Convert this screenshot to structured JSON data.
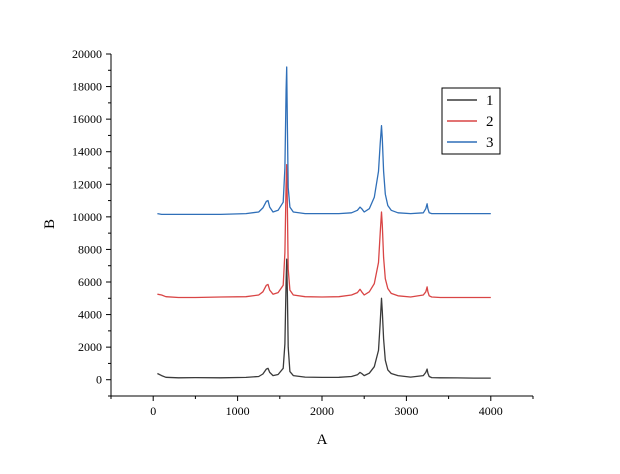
{
  "chart_data": {
    "type": "line",
    "xlabel": "A",
    "ylabel": "B",
    "xlim": [
      -500,
      4500
    ],
    "ylim": [
      -1000,
      20000
    ],
    "xticks": [
      0,
      1000,
      2000,
      3000,
      4000
    ],
    "yticks": [
      0,
      2000,
      4000,
      6000,
      8000,
      10000,
      12000,
      14000,
      16000,
      18000,
      20000
    ],
    "grid": false,
    "legend_position": "top-right",
    "series": [
      {
        "name": "1",
        "color": "#3a3a3a",
        "x": [
          50,
          100,
          150,
          300,
          500,
          800,
          1100,
          1250,
          1300,
          1340,
          1360,
          1380,
          1420,
          1480,
          1540,
          1560,
          1575,
          1582,
          1590,
          1600,
          1620,
          1660,
          1800,
          2000,
          2200,
          2350,
          2420,
          2450,
          2470,
          2500,
          2560,
          2620,
          2670,
          2690,
          2705,
          2715,
          2730,
          2750,
          2780,
          2820,
          2900,
          3050,
          3200,
          3230,
          3245,
          3255,
          3270,
          3300,
          3400,
          3600,
          3800,
          4000
        ],
        "y": [
          380,
          250,
          150,
          120,
          130,
          120,
          140,
          200,
          350,
          650,
          700,
          450,
          250,
          320,
          700,
          2200,
          6000,
          7400,
          5200,
          2000,
          500,
          250,
          160,
          140,
          150,
          200,
          300,
          450,
          380,
          250,
          400,
          800,
          1800,
          3500,
          5000,
          4200,
          2500,
          1200,
          600,
          380,
          250,
          160,
          250,
          450,
          650,
          400,
          200,
          130,
          120,
          110,
          100,
          100
        ]
      },
      {
        "name": "2",
        "color": "#d94545",
        "x": [
          50,
          100,
          150,
          300,
          500,
          800,
          1100,
          1250,
          1300,
          1340,
          1360,
          1380,
          1420,
          1480,
          1540,
          1560,
          1575,
          1582,
          1590,
          1600,
          1620,
          1660,
          1800,
          2000,
          2200,
          2350,
          2420,
          2450,
          2470,
          2500,
          2560,
          2620,
          2670,
          2690,
          2705,
          2715,
          2730,
          2750,
          2780,
          2820,
          2900,
          3050,
          3200,
          3230,
          3245,
          3255,
          3270,
          3300,
          3400,
          3600,
          3800,
          4000
        ],
        "y": [
          5250,
          5200,
          5100,
          5050,
          5050,
          5080,
          5100,
          5200,
          5400,
          5800,
          5850,
          5500,
          5250,
          5350,
          5800,
          7800,
          12000,
          13200,
          10500,
          6800,
          5500,
          5200,
          5100,
          5080,
          5100,
          5200,
          5350,
          5550,
          5400,
          5200,
          5400,
          5900,
          7200,
          9000,
          10300,
          9500,
          7500,
          6200,
          5600,
          5300,
          5150,
          5080,
          5200,
          5400,
          5700,
          5400,
          5150,
          5080,
          5050,
          5050,
          5050,
          5050
        ]
      },
      {
        "name": "3",
        "color": "#2f6fb8",
        "x": [
          50,
          100,
          150,
          300,
          500,
          800,
          1100,
          1250,
          1300,
          1340,
          1360,
          1380,
          1420,
          1480,
          1540,
          1560,
          1575,
          1582,
          1590,
          1600,
          1620,
          1660,
          1800,
          2000,
          2200,
          2350,
          2420,
          2450,
          2470,
          2500,
          2560,
          2620,
          2670,
          2690,
          2705,
          2715,
          2730,
          2750,
          2780,
          2820,
          2900,
          3050,
          3200,
          3230,
          3245,
          3255,
          3270,
          3300,
          3400,
          3600,
          3800,
          4000
        ],
        "y": [
          10200,
          10150,
          10150,
          10150,
          10150,
          10150,
          10200,
          10300,
          10550,
          10950,
          11000,
          10600,
          10300,
          10400,
          10900,
          13000,
          17800,
          19200,
          15500,
          11800,
          10600,
          10300,
          10200,
          10200,
          10200,
          10250,
          10400,
          10600,
          10500,
          10300,
          10500,
          11200,
          12800,
          14500,
          15600,
          14800,
          12800,
          11400,
          10700,
          10400,
          10250,
          10200,
          10250,
          10500,
          10800,
          10500,
          10250,
          10200,
          10200,
          10200,
          10200,
          10200
        ]
      }
    ]
  }
}
